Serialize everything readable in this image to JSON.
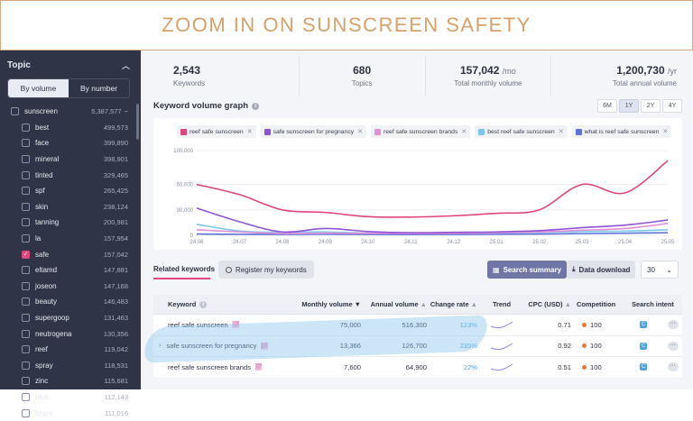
{
  "banner": {
    "title": "ZOOM IN ON SUNSCREEN SAFETY"
  },
  "sidebar": {
    "title": "Topic",
    "toggle": {
      "active": "By volume",
      "inactive": "By number"
    },
    "parent": {
      "label": "sunscreen",
      "count": "5,387,577"
    },
    "items": [
      {
        "label": "best",
        "count": "499,573",
        "checked": false
      },
      {
        "label": "face",
        "count": "399,890",
        "checked": false
      },
      {
        "label": "mineral",
        "count": "398,901",
        "checked": false
      },
      {
        "label": "tinted",
        "count": "329,465",
        "checked": false
      },
      {
        "label": "spf",
        "count": "265,425",
        "checked": false
      },
      {
        "label": "skin",
        "count": "238,124",
        "checked": false
      },
      {
        "label": "tanning",
        "count": "200,981",
        "checked": false
      },
      {
        "label": "la",
        "count": "157,954",
        "checked": false
      },
      {
        "label": "safe",
        "count": "157,042",
        "checked": true
      },
      {
        "label": "eltamd",
        "count": "147,881",
        "checked": false
      },
      {
        "label": "joseon",
        "count": "147,168",
        "checked": false
      },
      {
        "label": "beauty",
        "count": "146,483",
        "checked": false
      },
      {
        "label": "supergoop",
        "count": "131,463",
        "checked": false
      },
      {
        "label": "neutrogena",
        "count": "130,356",
        "checked": false
      },
      {
        "label": "reef",
        "count": "119,042",
        "checked": false
      },
      {
        "label": "spray",
        "count": "118,531",
        "checked": false
      },
      {
        "label": "zinc",
        "count": "115,681",
        "checked": false
      },
      {
        "label": "blue",
        "count": "112,143",
        "checked": false
      },
      {
        "label": "lizard",
        "count": "111,016",
        "checked": false
      }
    ]
  },
  "stats": [
    {
      "value": "2,543",
      "unit": "",
      "label": "Keywords"
    },
    {
      "value": "680",
      "unit": "",
      "label": "Topics"
    },
    {
      "value": "157,042",
      "unit": "/mo",
      "label": "Total monthly volume"
    },
    {
      "value": "1,200,730",
      "unit": "/yr",
      "label": "Total annual volume"
    }
  ],
  "graph": {
    "title": "Keyword volume graph",
    "periods": [
      "6M",
      "1Y",
      "2Y",
      "4Y"
    ],
    "active_period": "1Y"
  },
  "chart_data": {
    "type": "line",
    "x": [
      "24.06",
      "24.07",
      "24.08",
      "24.09",
      "24.10",
      "24.11",
      "24.12",
      "25.01",
      "25.02",
      "25.03",
      "25.04",
      "25.05"
    ],
    "ylim": [
      0,
      100000
    ],
    "yticks": [
      "100,000",
      "60,000",
      "30,000",
      "0"
    ],
    "series": [
      {
        "name": "reef safe sunscreen",
        "color": "#e0457b",
        "values": [
          60000,
          48000,
          30000,
          27000,
          22000,
          21500,
          23000,
          26000,
          30000,
          60000,
          50000,
          88000
        ]
      },
      {
        "name": "safe sunscreen for pregnancy",
        "color": "#8f54d6",
        "values": [
          32000,
          16000,
          4000,
          8000,
          4500,
          3000,
          3500,
          4000,
          5500,
          9000,
          12000,
          18000
        ]
      },
      {
        "name": "reef safe sunscreen brands",
        "color": "#e48fd7",
        "values": [
          6500,
          4000,
          2000,
          2500,
          2200,
          2000,
          2200,
          3000,
          4000,
          6000,
          8000,
          14000
        ]
      },
      {
        "name": "best reef safe sunscreen",
        "color": "#7cc6ea",
        "values": [
          13000,
          5000,
          3500,
          4000,
          2500,
          2500,
          2500,
          3000,
          3500,
          4500,
          5000,
          6500
        ]
      },
      {
        "name": "what is reef safe sunscreen",
        "color": "#5b73d6",
        "values": [
          1500,
          1200,
          1000,
          1200,
          1000,
          900,
          1000,
          1200,
          1500,
          2000,
          2500,
          3000
        ]
      }
    ]
  },
  "tabs": {
    "related": "Related keywords",
    "register": "Register my keywords",
    "search_summary": "Search summary",
    "data_download": "Data download",
    "page_size": "30"
  },
  "table": {
    "headers": {
      "keyword": "Keyword",
      "monthly": "Monthly volume",
      "annual": "Annual volume",
      "change": "Change rate",
      "trend": "Trend",
      "cpc": "CPC (USD)",
      "competition": "Competition",
      "intent": "Search intent"
    },
    "rows": [
      {
        "keyword": "reef safe sunscreen",
        "monthly": "75,000",
        "annual": "516,300",
        "change": "123%",
        "cpc": "0.71",
        "competition": "100"
      },
      {
        "keyword": "safe sunscreen for pregnancy",
        "monthly": "13,366",
        "annual": "126,700",
        "change": "235%",
        "cpc": "0.92",
        "competition": "100"
      },
      {
        "keyword": "reef safe sunscreen brands",
        "monthly": "7,600",
        "annual": "64,900",
        "change": "22%",
        "cpc": "0.51",
        "competition": "100"
      }
    ]
  }
}
